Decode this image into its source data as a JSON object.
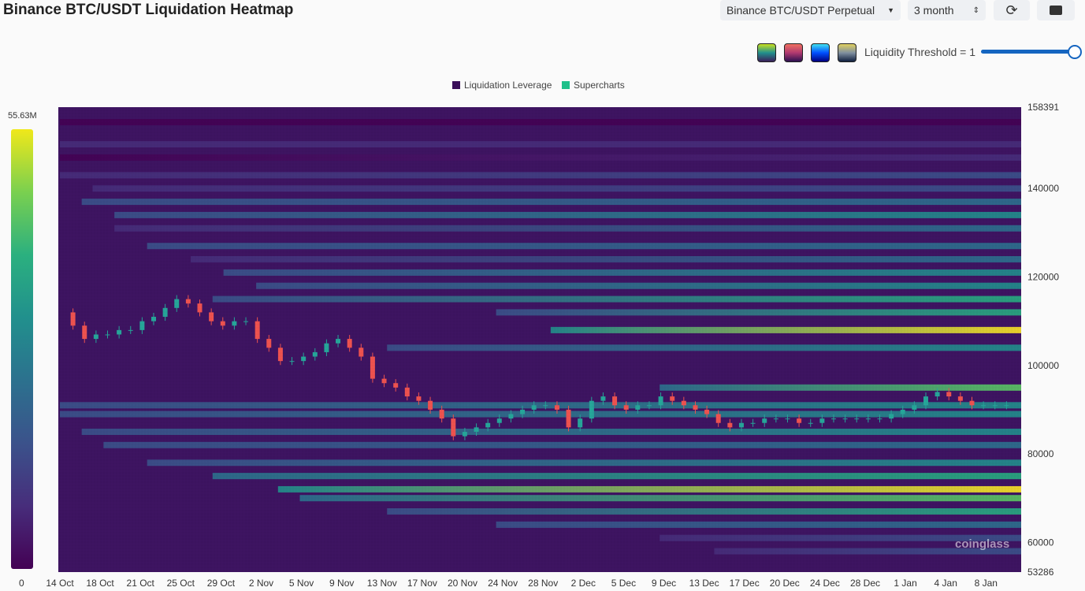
{
  "header": {
    "title": "Binance BTC/USDT Liquidation Heatmap",
    "pair_select": "Binance BTC/USDT Perpetual",
    "period_select": "3 month",
    "refresh_icon": "refresh-icon",
    "camera_icon": "camera-icon"
  },
  "controls": {
    "threshold_label": "Liquidity Threshold = 1",
    "threshold_value": 1,
    "palettes": [
      "viridis",
      "magma",
      "jet",
      "cividis"
    ]
  },
  "chart_data": {
    "type": "heatmap",
    "title": "Binance BTC/USDT Liquidation Heatmap",
    "legend": [
      {
        "name": "Liquidation Leverage",
        "color": "#3b0f5a"
      },
      {
        "name": "Supercharts",
        "color": "#20c08a"
      }
    ],
    "legend_placement": "top-center",
    "ylim": [
      53286,
      158391
    ],
    "y_ticks": [
      158391,
      140000,
      120000,
      100000,
      80000,
      60000,
      53286
    ],
    "colorbar": {
      "min": 0,
      "max": "55.63M",
      "min_label": "0",
      "max_label": "55.63M"
    },
    "x_ticks": [
      "14 Oct",
      "18 Oct",
      "21 Oct",
      "25 Oct",
      "29 Oct",
      "2 Nov",
      "5 Nov",
      "9 Nov",
      "13 Nov",
      "17 Nov",
      "20 Nov",
      "24 Nov",
      "28 Nov",
      "2 Dec",
      "5 Dec",
      "9 Dec",
      "13 Dec",
      "17 Dec",
      "20 Dec",
      "24 Dec",
      "28 Dec",
      "1 Jan",
      "4 Jan",
      "8 Jan"
    ],
    "days_total": 89,
    "price": [
      112,
      109,
      106,
      107,
      107,
      108,
      108,
      110,
      111,
      113,
      115,
      114,
      112,
      110,
      109,
      110,
      110,
      106,
      104,
      101,
      101,
      102,
      103,
      105,
      106,
      104,
      102,
      97,
      96,
      95,
      93,
      92,
      90,
      88,
      84,
      85,
      86,
      87,
      88,
      89,
      90,
      91,
      91,
      90,
      86,
      88,
      92,
      93,
      91,
      90,
      91,
      91,
      93,
      92,
      91,
      90,
      89,
      87,
      86,
      87,
      87,
      88,
      88,
      88,
      87,
      87,
      88,
      88,
      88,
      88,
      88,
      88,
      89,
      90,
      91,
      93,
      94,
      93,
      92,
      91,
      91,
      91,
      91
    ],
    "bands": [
      {
        "price": 155,
        "v": 0.05,
        "start": 0
      },
      {
        "price": 150,
        "v": 0.15,
        "start": 0
      },
      {
        "price": 147,
        "v": 0.12,
        "start": 0
      },
      {
        "price": 143,
        "v": 0.2,
        "start": 0
      },
      {
        "price": 140,
        "v": 0.3,
        "start": 3
      },
      {
        "price": 137,
        "v": 0.4,
        "start": 2
      },
      {
        "price": 134,
        "v": 0.45,
        "start": 5
      },
      {
        "price": 131,
        "v": 0.35,
        "start": 5
      },
      {
        "price": 127,
        "v": 0.4,
        "start": 8
      },
      {
        "price": 124,
        "v": 0.35,
        "start": 12
      },
      {
        "price": 121,
        "v": 0.5,
        "start": 15
      },
      {
        "price": 118,
        "v": 0.55,
        "start": 18
      },
      {
        "price": 115,
        "v": 0.6,
        "start": 14
      },
      {
        "price": 112,
        "v": 0.6,
        "start": 40
      },
      {
        "price": 108,
        "v": 0.95,
        "start": 45
      },
      {
        "price": 104,
        "v": 0.55,
        "start": 30
      },
      {
        "price": 95,
        "v": 0.8,
        "start": 55
      },
      {
        "price": 91,
        "v": 0.5,
        "start": 0
      },
      {
        "price": 89,
        "v": 0.55,
        "start": 0
      },
      {
        "price": 85,
        "v": 0.45,
        "start": 2
      },
      {
        "price": 82,
        "v": 0.4,
        "start": 4
      },
      {
        "price": 78,
        "v": 0.55,
        "start": 8
      },
      {
        "price": 75,
        "v": 0.65,
        "start": 14
      },
      {
        "price": 72,
        "v": 0.95,
        "start": 20
      },
      {
        "price": 70,
        "v": 0.8,
        "start": 22
      },
      {
        "price": 67,
        "v": 0.6,
        "start": 30
      },
      {
        "price": 64,
        "v": 0.4,
        "start": 40
      },
      {
        "price": 61,
        "v": 0.3,
        "start": 55
      },
      {
        "price": 58,
        "v": 0.2,
        "start": 60
      }
    ]
  },
  "watermark": "coinglass"
}
